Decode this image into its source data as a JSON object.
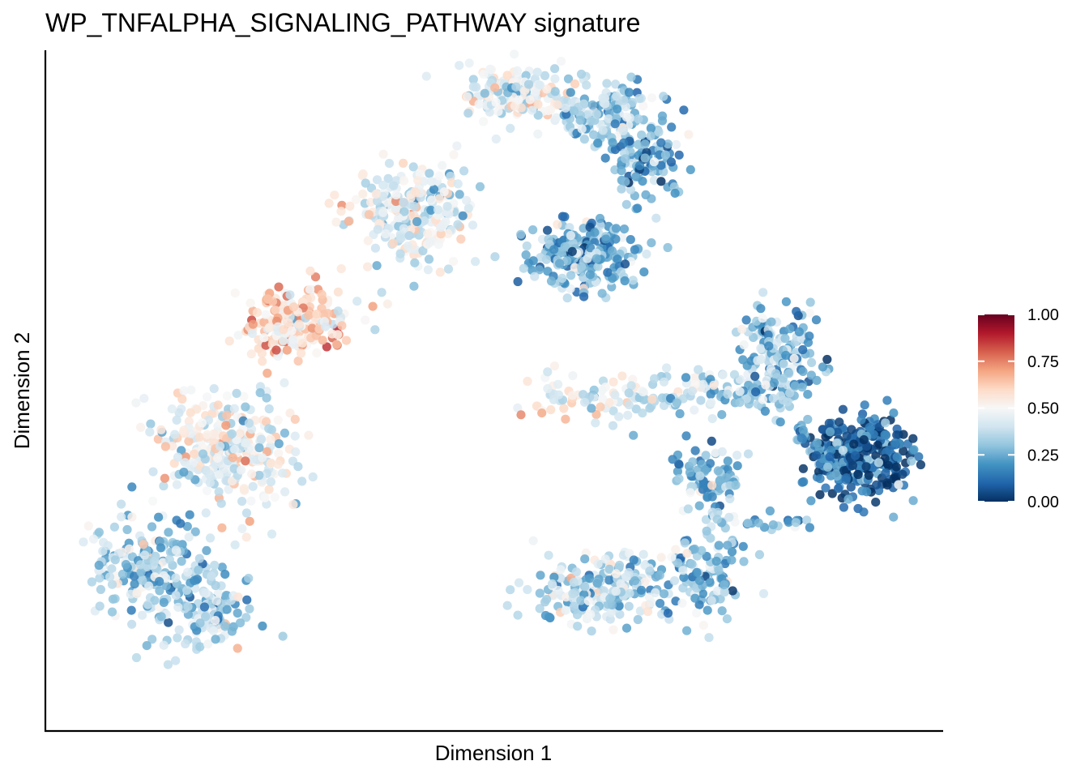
{
  "chart_data": {
    "type": "scatter",
    "title": "WP_TNFALPHA_SIGNALING_PATHWAY signature",
    "xlabel": "Dimension 1",
    "ylabel": "Dimension 2",
    "axis_ticks": "none",
    "grid": false,
    "legend": {
      "placement": "right",
      "type": "colorbar",
      "ticks": [
        "1.00",
        "0.75",
        "0.50",
        "0.25",
        "0.00"
      ],
      "range": [
        0,
        1
      ],
      "palette": [
        "#053061",
        "#2166ac",
        "#4393c3",
        "#92c5de",
        "#d1e5f0",
        "#f7f7f7",
        "#fddbc7",
        "#f4a582",
        "#d6604d",
        "#b2182b",
        "#67001f"
      ]
    },
    "clusters": [
      {
        "name": "",
        "center": [
          41,
          24
        ],
        "spread": [
          4.5,
          5.5
        ],
        "value_mean": 0.45,
        "n": 260
      },
      {
        "name": "",
        "center": [
          28,
          40
        ],
        "spread": [
          3.8,
          3.5
        ],
        "value_mean": 0.58,
        "n": 230
      },
      {
        "name": "",
        "center": [
          20,
          59
        ],
        "spread": [
          5.0,
          6.0
        ],
        "value_mean": 0.47,
        "n": 300
      },
      {
        "name": "",
        "center": [
          11,
          77
        ],
        "spread": [
          4.5,
          5.5
        ],
        "value_mean": 0.35,
        "n": 200
      },
      {
        "name": "",
        "center": [
          18,
          82
        ],
        "spread": [
          3.5,
          4.5
        ],
        "value_mean": 0.34,
        "n": 120
      },
      {
        "name": "",
        "center": [
          52,
          6
        ],
        "spread": [
          4.0,
          3.5
        ],
        "value_mean": 0.44,
        "n": 160
      },
      {
        "name": "",
        "center": [
          62,
          9
        ],
        "spread": [
          3.5,
          3.0
        ],
        "value_mean": 0.33,
        "n": 160
      },
      {
        "name": "",
        "center": [
          67,
          16
        ],
        "spread": [
          3.0,
          4.0
        ],
        "value_mean": 0.25,
        "n": 110
      },
      {
        "name": "",
        "center": [
          60,
          30
        ],
        "spread": [
          4.0,
          3.5
        ],
        "value_mean": 0.27,
        "n": 260
      },
      {
        "name": "",
        "center": [
          91,
          60
        ],
        "spread": [
          4.0,
          4.0
        ],
        "value_mean": 0.1,
        "n": 280
      },
      {
        "name": "",
        "center": [
          82,
          46
        ],
        "spread": [
          3.0,
          5.0
        ],
        "value_mean": 0.28,
        "n": 170
      },
      {
        "name": "",
        "center": [
          62,
          80
        ],
        "spread": [
          5.0,
          3.5
        ],
        "value_mean": 0.38,
        "n": 200
      },
      {
        "name": "",
        "center": [
          74,
          63
        ],
        "spread": [
          2.5,
          3.0
        ],
        "value_mean": 0.3,
        "n": 90
      },
      {
        "name": "",
        "center": [
          73,
          78
        ],
        "spread": [
          3.5,
          4.0
        ],
        "value_mean": 0.3,
        "n": 120
      }
    ],
    "bands": [
      {
        "name": "",
        "from": [
          54,
          52
        ],
        "to": [
          80,
          50
        ],
        "width": 2.6,
        "value_from": 0.5,
        "value_to": 0.3,
        "n": 170
      },
      {
        "name": "",
        "from": [
          84,
          56
        ],
        "to": [
          89,
          64
        ],
        "width": 1.2,
        "value_from": 0.25,
        "value_to": 0.15,
        "n": 35
      },
      {
        "name": "",
        "from": [
          74,
          70
        ],
        "to": [
          86,
          70
        ],
        "width": 1.2,
        "value_from": 0.35,
        "value_to": 0.25,
        "n": 30
      }
    ],
    "xlim": [
      0,
      100
    ],
    "ylim": [
      0,
      100
    ]
  }
}
